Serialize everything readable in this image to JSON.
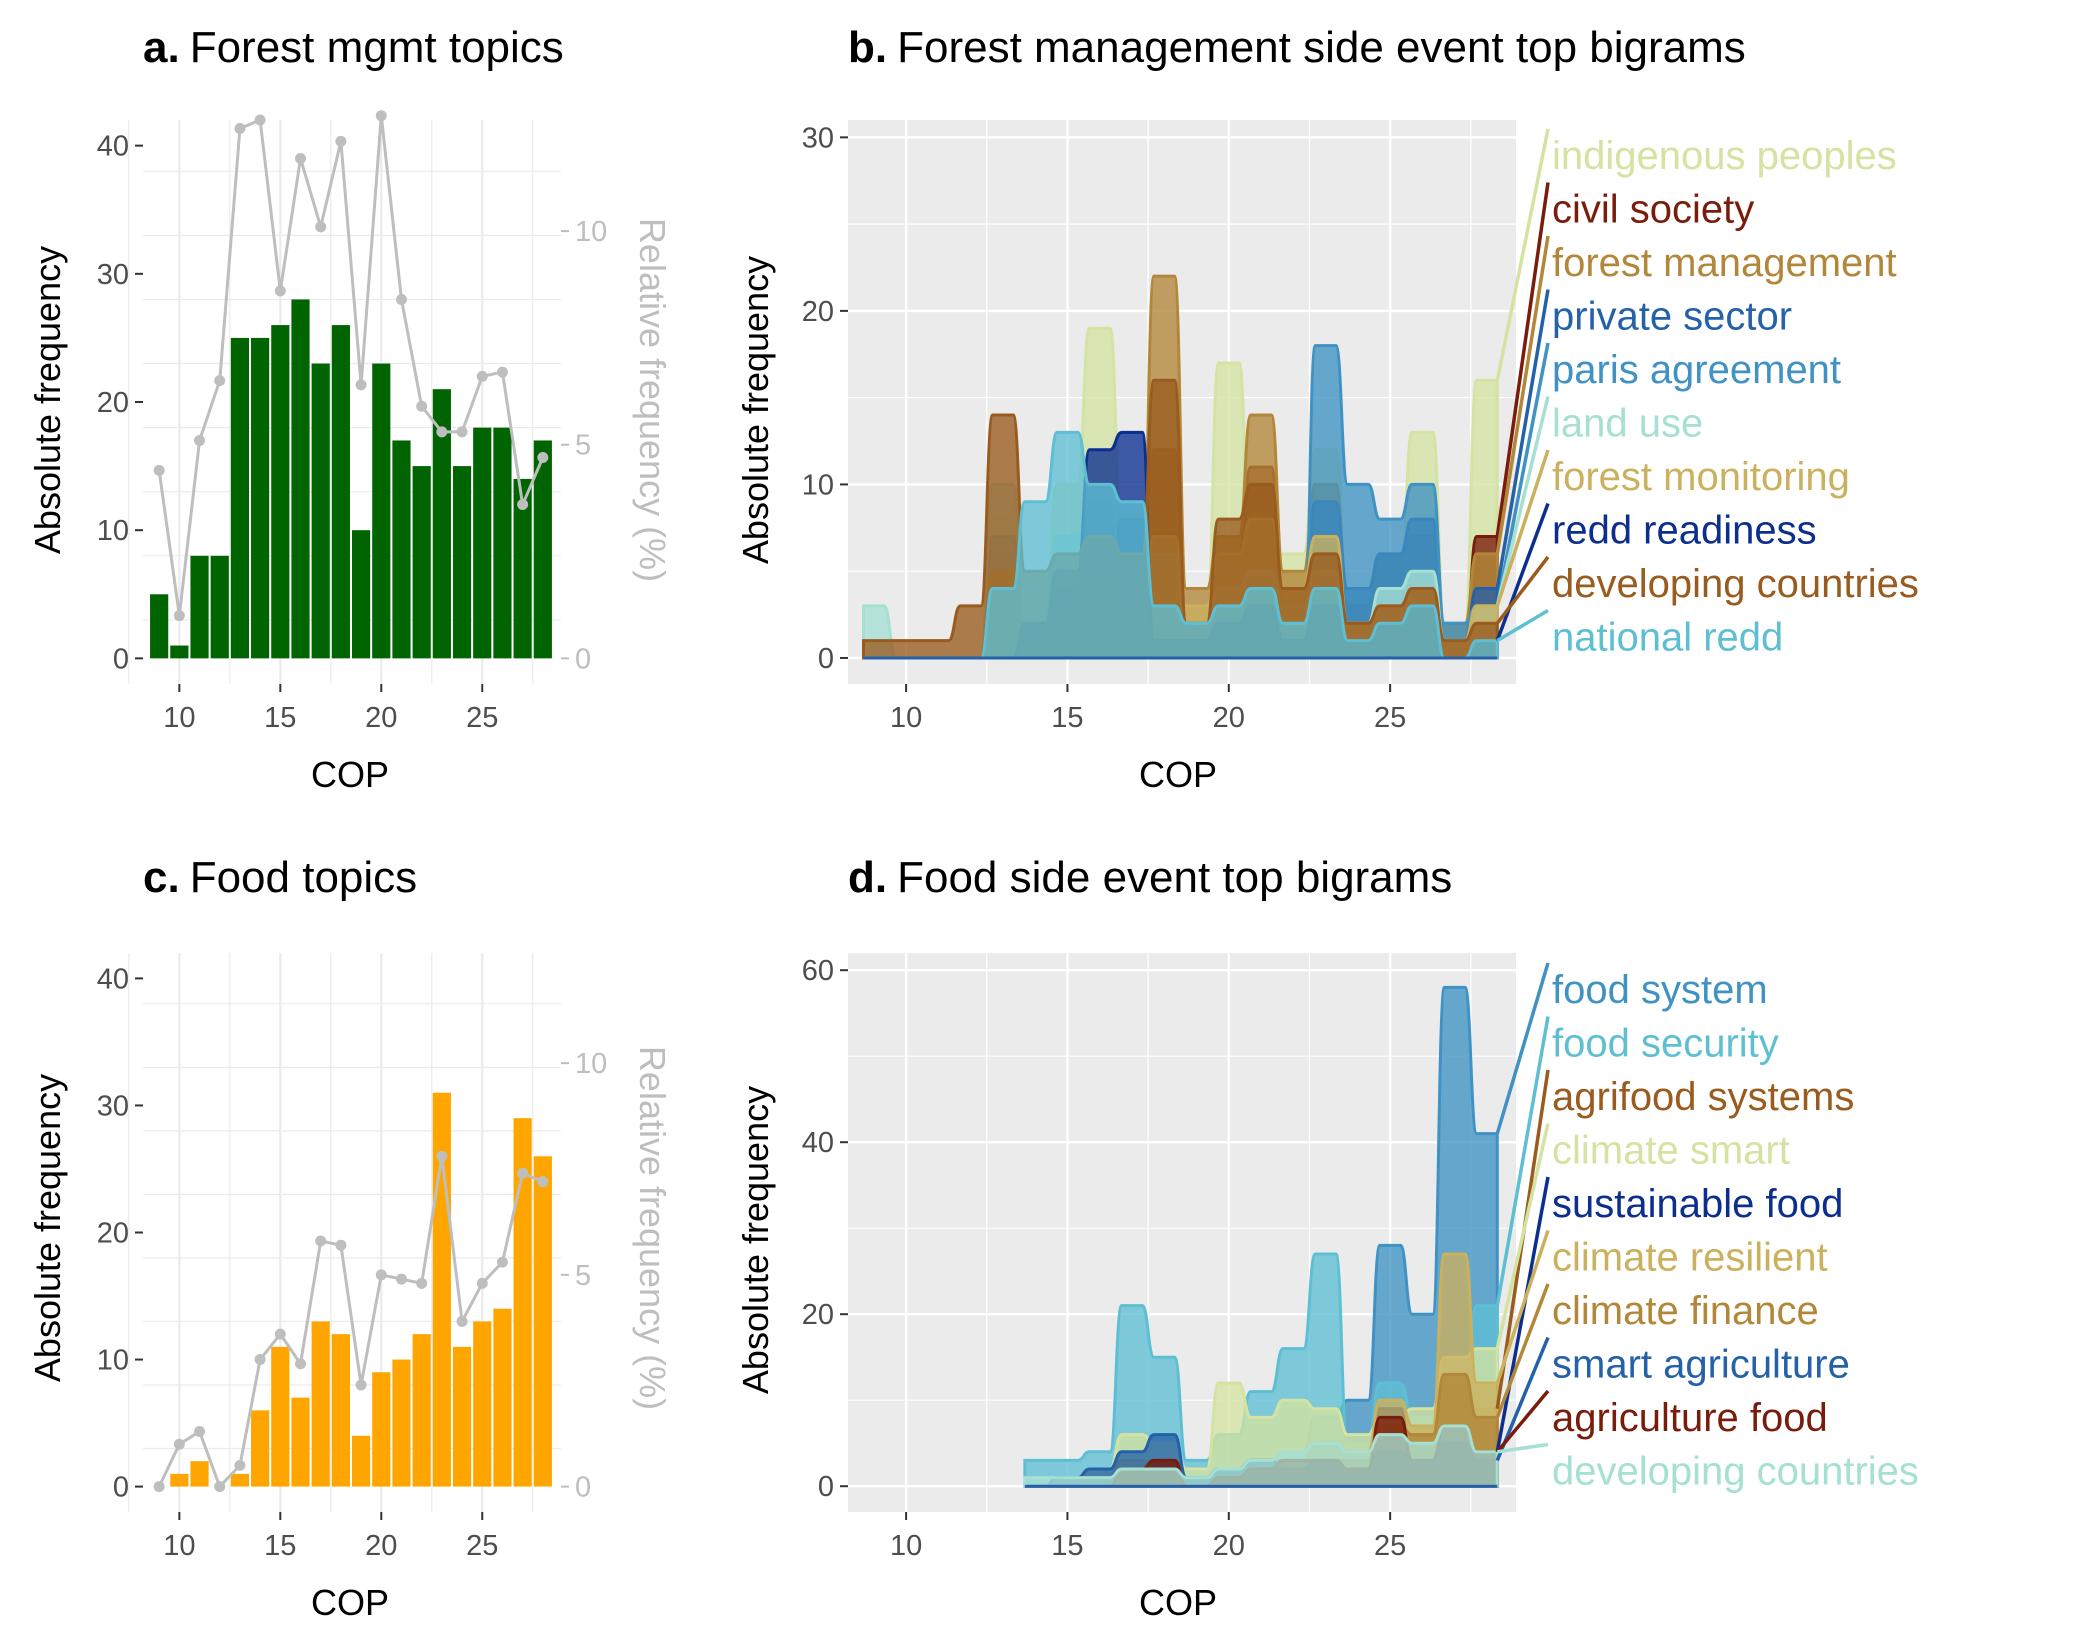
{
  "chart_data": [
    {
      "id": "a",
      "type": "bar",
      "title_letter": "a.",
      "title_text": "Forest mgmt topics",
      "xlabel": "COP",
      "ylabel": "Absolute frequency",
      "y2label": "Relative frequency (%)",
      "xlim": [
        8.2,
        28.9
      ],
      "ylim": [
        -2,
        42
      ],
      "y2lim": [
        -0.6,
        12.6
      ],
      "xticks": [
        10,
        15,
        20,
        25
      ],
      "yticks": [
        0,
        10,
        20,
        30,
        40
      ],
      "y2ticks": [
        0,
        5,
        10
      ],
      "bar_color": "#006400",
      "line_color": "#bebebe",
      "x": [
        9,
        10,
        11,
        12,
        13,
        14,
        15,
        16,
        17,
        18,
        19,
        20,
        21,
        22,
        23,
        24,
        25,
        26,
        27,
        28
      ],
      "values": [
        5,
        1,
        8,
        8,
        25,
        25,
        26,
        28,
        23,
        26,
        10,
        23,
        17,
        15,
        21,
        15,
        18,
        18,
        14,
        17
      ],
      "relative": [
        4.4,
        1.0,
        5.1,
        6.5,
        12.4,
        12.6,
        8.6,
        11.7,
        10.1,
        12.1,
        6.4,
        12.7,
        8.4,
        5.9,
        5.3,
        5.3,
        6.6,
        6.7,
        3.6,
        4.7
      ]
    },
    {
      "id": "b",
      "type": "area",
      "title_letter": "b.",
      "title_text": "Forest management side event top bigrams",
      "xlabel": "COP",
      "ylabel": "Absolute frequency",
      "xlim": [
        8.2,
        28.9
      ],
      "ylim": [
        -1.5,
        31
      ],
      "xticks": [
        10,
        15,
        20,
        25
      ],
      "yticks": [
        0,
        10,
        20,
        30
      ],
      "x": [
        9,
        10,
        11,
        12,
        13,
        14,
        15,
        16,
        17,
        18,
        19,
        20,
        21,
        22,
        23,
        24,
        25,
        26,
        27,
        28
      ],
      "series": [
        {
          "name": "indigenous peoples",
          "color": "#d4e3a2",
          "values": [
            0,
            0,
            0,
            0,
            8,
            2,
            10,
            19,
            7,
            3,
            2,
            17,
            5,
            6,
            12,
            3,
            5,
            13,
            2,
            16
          ]
        },
        {
          "name": "civil society",
          "color": "#7a1c0c",
          "values": [
            0,
            0,
            0,
            0,
            5,
            2,
            4,
            9,
            4,
            12,
            2,
            6,
            11,
            3,
            6,
            2,
            3,
            4,
            1,
            7
          ]
        },
        {
          "name": "forest management",
          "color": "#b28739",
          "values": [
            0,
            0,
            0,
            0,
            6,
            1,
            3,
            6,
            5,
            22,
            4,
            7,
            14,
            5,
            10,
            3,
            6,
            7,
            2,
            6
          ]
        },
        {
          "name": "private sector",
          "color": "#2461a8",
          "values": [
            0,
            0,
            0,
            0,
            7,
            1,
            2,
            4,
            8,
            2,
            1,
            3,
            5,
            2,
            9,
            4,
            6,
            8,
            1,
            4
          ]
        },
        {
          "name": "paris agreement",
          "color": "#3f92c3",
          "values": [
            0,
            0,
            0,
            0,
            0,
            0,
            0,
            0,
            0,
            0,
            0,
            0,
            0,
            0,
            18,
            10,
            8,
            10,
            2,
            3
          ]
        },
        {
          "name": "land use",
          "color": "#a6e0d3",
          "values": [
            3,
            0,
            0,
            0,
            10,
            2,
            7,
            9,
            5,
            6,
            2,
            4,
            5,
            3,
            5,
            2,
            4,
            5,
            1,
            3
          ]
        },
        {
          "name": "forest monitoring",
          "color": "#cbb15e",
          "values": [
            0,
            0,
            0,
            0,
            5,
            1,
            3,
            5,
            3,
            7,
            3,
            6,
            8,
            4,
            7,
            2,
            3,
            4,
            1,
            3
          ]
        },
        {
          "name": "redd readiness",
          "color": "#0c2e8f",
          "values": [
            0,
            0,
            0,
            0,
            0,
            2,
            5,
            12,
            13,
            1,
            1,
            2,
            3,
            1,
            3,
            1,
            2,
            3,
            0,
            1
          ]
        },
        {
          "name": "developing countries",
          "color": "#995b1e",
          "values": [
            1,
            1,
            1,
            3,
            14,
            5,
            6,
            7,
            6,
            16,
            2,
            8,
            10,
            4,
            6,
            2,
            3,
            4,
            1,
            2
          ]
        },
        {
          "name": "national redd",
          "color": "#5ebfd3",
          "values": [
            0,
            0,
            0,
            0,
            4,
            9,
            13,
            10,
            9,
            3,
            2,
            3,
            4,
            2,
            4,
            1,
            2,
            3,
            0,
            1
          ]
        }
      ]
    },
    {
      "id": "c",
      "type": "bar",
      "title_letter": "c.",
      "title_text": "Food topics",
      "xlabel": "COP",
      "ylabel": "Absolute frequency",
      "y2label": "Relative frequency (%)",
      "xlim": [
        8.2,
        28.9
      ],
      "ylim": [
        -2,
        42
      ],
      "y2lim": [
        -0.6,
        12.6
      ],
      "xticks": [
        10,
        15,
        20,
        25
      ],
      "yticks": [
        0,
        10,
        20,
        30,
        40
      ],
      "y2ticks": [
        0,
        5,
        10
      ],
      "bar_color": "#ffa500",
      "line_color": "#bebebe",
      "x": [
        9,
        10,
        11,
        12,
        13,
        14,
        15,
        16,
        17,
        18,
        19,
        20,
        21,
        22,
        23,
        24,
        25,
        26,
        27,
        28
      ],
      "values": [
        0,
        1,
        2,
        0,
        1,
        6,
        11,
        7,
        13,
        12,
        4,
        9,
        10,
        12,
        31,
        11,
        13,
        14,
        29,
        26
      ],
      "relative": [
        0,
        1.0,
        1.3,
        0,
        0.5,
        3.0,
        3.6,
        2.9,
        5.8,
        5.7,
        2.4,
        5.0,
        4.9,
        4.8,
        7.8,
        3.9,
        4.8,
        5.3,
        7.4,
        7.2
      ]
    },
    {
      "id": "d",
      "type": "area",
      "title_letter": "d.",
      "title_text": "Food side event top bigrams",
      "xlabel": "COP",
      "ylabel": "Absolute frequency",
      "xlim": [
        8.2,
        28.9
      ],
      "ylim": [
        -3,
        62
      ],
      "xticks": [
        10,
        15,
        20,
        25
      ],
      "yticks": [
        0,
        20,
        40,
        60
      ],
      "x": [
        14,
        15,
        16,
        17,
        18,
        19,
        20,
        21,
        22,
        23,
        24,
        25,
        26,
        27,
        28
      ],
      "series": [
        {
          "name": "food system",
          "color": "#3f92c3",
          "values": [
            0,
            0,
            0,
            3,
            3,
            1,
            2,
            3,
            4,
            8,
            10,
            28,
            20,
            58,
            41
          ]
        },
        {
          "name": "food security",
          "color": "#5ebfd3",
          "values": [
            3,
            3,
            4,
            21,
            15,
            3,
            6,
            11,
            16,
            27,
            5,
            12,
            8,
            13,
            21
          ]
        },
        {
          "name": "agrifood systems",
          "color": "#995b1e",
          "values": [
            0,
            0,
            0,
            0,
            0,
            0,
            0,
            0,
            0,
            0,
            0,
            3,
            4,
            12,
            9
          ]
        },
        {
          "name": "climate smart",
          "color": "#d4e3a2",
          "values": [
            0,
            1,
            2,
            6,
            5,
            2,
            12,
            8,
            10,
            9,
            6,
            8,
            9,
            15,
            16
          ]
        },
        {
          "name": "sustainable food",
          "color": "#0c2e8f",
          "values": [
            0,
            0,
            0,
            2,
            3,
            0,
            1,
            0,
            1,
            2,
            1,
            9,
            2,
            3,
            4
          ]
        },
        {
          "name": "climate resilient",
          "color": "#cbb15e",
          "values": [
            0,
            0,
            1,
            3,
            2,
            1,
            2,
            3,
            3,
            5,
            4,
            10,
            7,
            27,
            12
          ]
        },
        {
          "name": "climate finance",
          "color": "#b28739",
          "values": [
            0,
            0,
            0,
            1,
            1,
            0,
            1,
            2,
            2,
            3,
            3,
            7,
            6,
            13,
            8
          ]
        },
        {
          "name": "smart agriculture",
          "color": "#2461a8",
          "values": [
            0,
            1,
            2,
            4,
            6,
            1,
            2,
            3,
            2,
            3,
            2,
            4,
            3,
            5,
            3
          ]
        },
        {
          "name": "agriculture food",
          "color": "#7a1c0c",
          "values": [
            0,
            0,
            0,
            2,
            3,
            0,
            1,
            2,
            3,
            3,
            2,
            8,
            3,
            7,
            4
          ]
        },
        {
          "name": "developing countries",
          "color": "#a6e0d3",
          "values": [
            1,
            1,
            1,
            2,
            2,
            1,
            2,
            3,
            4,
            5,
            4,
            6,
            5,
            7,
            4
          ]
        }
      ]
    }
  ]
}
